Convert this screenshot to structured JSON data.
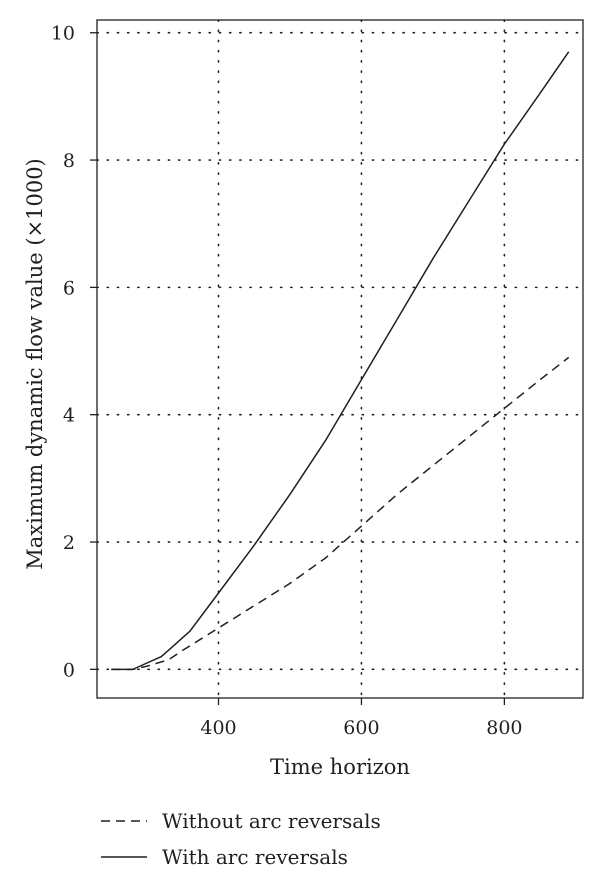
{
  "chart_data": {
    "type": "line",
    "title": "",
    "xlabel": "Time horizon",
    "ylabel": "Maximum dynamic flow value (×1000)",
    "xlim": [
      230,
      910
    ],
    "ylim": [
      -0.45,
      10.2
    ],
    "xticks": [
      400,
      600,
      800
    ],
    "yticks": [
      0,
      2,
      4,
      6,
      8,
      10
    ],
    "grid": true,
    "legend_position": "below-plot",
    "series": [
      {
        "name": "Without arc reversals",
        "style": "dashed",
        "x": [
          250,
          280,
          300,
          330,
          350,
          400,
          450,
          500,
          550,
          600,
          650,
          700,
          750,
          800,
          850,
          890
        ],
        "y": [
          0,
          0,
          0.05,
          0.15,
          0.3,
          0.65,
          1.0,
          1.35,
          1.75,
          2.25,
          2.75,
          3.2,
          3.65,
          4.1,
          4.55,
          4.9
        ]
      },
      {
        "name": "With arc reversals",
        "style": "solid",
        "x": [
          250,
          280,
          300,
          320,
          330,
          340,
          360,
          400,
          450,
          500,
          550,
          600,
          650,
          700,
          750,
          800,
          850,
          890
        ],
        "y": [
          0,
          0,
          0.1,
          0.2,
          0.3,
          0.4,
          0.6,
          1.2,
          1.95,
          2.75,
          3.6,
          4.55,
          5.5,
          6.45,
          7.35,
          8.25,
          9.05,
          9.7
        ]
      }
    ]
  }
}
